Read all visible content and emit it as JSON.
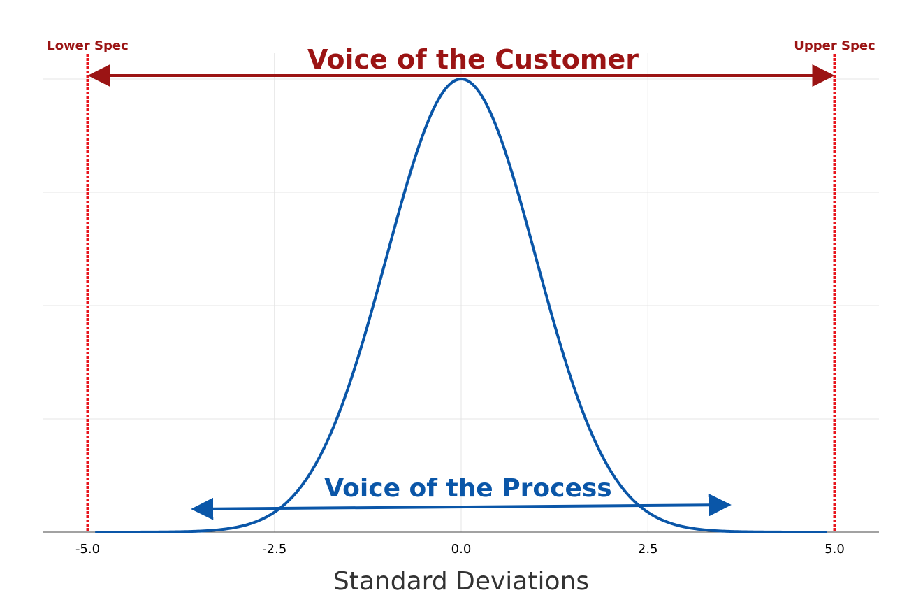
{
  "chart_data": {
    "type": "line",
    "title": "",
    "xlabel": "Standard Deviations",
    "ylabel": "",
    "xlim": [
      -5.5,
      5.5
    ],
    "ylim": [
      0,
      1
    ],
    "x_ticks": [
      -5.0,
      -2.5,
      0.0,
      2.5,
      5.0
    ],
    "x_tick_labels": [
      "-5.0",
      "-2.5",
      "0.0",
      "2.5",
      "5.0"
    ],
    "y_gridlines": [
      0.25,
      0.5,
      0.75,
      1.0
    ],
    "grid": true,
    "series": [
      {
        "curve": "normal_distribution",
        "mean": 0,
        "sd": 1,
        "x_range": [
          -4.9,
          4.9
        ],
        "normalized_peak": 1.0
      }
    ],
    "spec_limits": [
      {
        "label": "Lower Spec",
        "x": -5.0
      },
      {
        "label": "Upper Spec",
        "x": 5.0
      }
    ],
    "annotations": {
      "customer": {
        "text": "Voice of the Customer",
        "x_from": -5.0,
        "x_to": 5.0
      },
      "process": {
        "text": "Voice of the Process",
        "x_from": -3.6,
        "x_to": 3.6
      }
    },
    "colors": {
      "curve": "#0a56a8",
      "customer": "#9b1414",
      "spec_line": "#e8141c",
      "grid": "#e4e4e4",
      "axis": "#444444",
      "axis_title": "#333333"
    }
  }
}
